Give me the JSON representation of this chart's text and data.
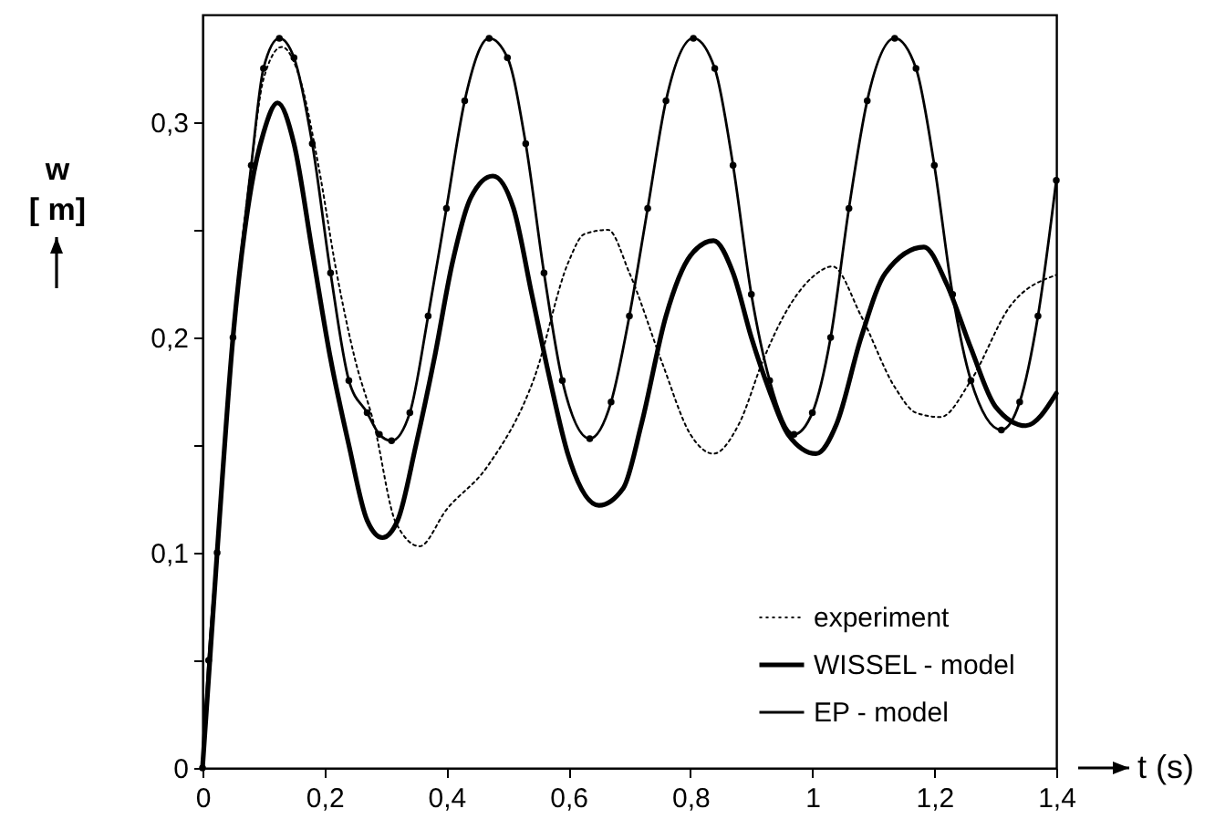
{
  "chart_data": {
    "type": "line",
    "xlabel": "t (s)",
    "ylabel": "w [ m]",
    "xlim": [
      0,
      1.4
    ],
    "ylim": [
      0,
      0.35
    ],
    "xticks": [
      0,
      {
        "value": 0.2,
        "label": "0,2"
      },
      {
        "value": 0.4,
        "label": "0,4"
      },
      {
        "value": 0.6,
        "label": "0,6"
      },
      {
        "value": 0.8,
        "label": "0,8"
      },
      1,
      {
        "value": 1.2,
        "label": "1,2"
      },
      {
        "value": 1.4,
        "label": "1,4"
      }
    ],
    "yticks": [
      0,
      {
        "value": 0.05,
        "label": null
      },
      {
        "value": 0.1,
        "label": "0,1"
      },
      {
        "value": 0.15,
        "label": null
      },
      {
        "value": 0.2,
        "label": "0,2"
      },
      {
        "value": 0.25,
        "label": null
      },
      {
        "value": 0.3,
        "label": "0,3"
      }
    ],
    "grid": false,
    "legend": "bottom right",
    "series": [
      {
        "name": "experiment",
        "color": "#000000",
        "line_style": "dotted",
        "marker": "none",
        "x": [
          0,
          0.024,
          0.05,
          0.08,
          0.1,
          0.13,
          0.16,
          0.19,
          0.22,
          0.25,
          0.281,
          0.317,
          0.356,
          0.4,
          0.467,
          0.545,
          0.6,
          0.626,
          0.665,
          0.7,
          0.754,
          0.8,
          0.838,
          0.88,
          0.92,
          0.955,
          1.0,
          1.033,
          1.08,
          1.135,
          1.17,
          1.21,
          1.26,
          1.323,
          1.4
        ],
        "values": [
          0,
          0.1,
          0.2,
          0.28,
          0.32,
          0.335,
          0.32,
          0.28,
          0.23,
          0.19,
          0.16,
          0.114,
          0.103,
          0.12,
          0.14,
          0.182,
          0.235,
          0.248,
          0.25,
          0.23,
          0.188,
          0.155,
          0.146,
          0.16,
          0.19,
          0.211,
          0.228,
          0.233,
          0.21,
          0.177,
          0.165,
          0.163,
          0.18,
          0.214,
          0.229
        ]
      },
      {
        "name": "WISSEL - model",
        "color": "#000000",
        "line_style": "solid",
        "marker": "none",
        "x": [
          0,
          0.024,
          0.05,
          0.08,
          0.1,
          0.123,
          0.15,
          0.18,
          0.21,
          0.24,
          0.27,
          0.295,
          0.32,
          0.35,
          0.38,
          0.41,
          0.44,
          0.476,
          0.51,
          0.54,
          0.57,
          0.6,
          0.65,
          0.69,
          0.72,
          0.76,
          0.8,
          0.838,
          0.87,
          0.9,
          0.93,
          0.96,
          1.006,
          1.04,
          1.08,
          1.12,
          1.183,
          1.22,
          1.26,
          1.3,
          1.35,
          1.4
        ],
        "values": [
          0,
          0.1,
          0.2,
          0.27,
          0.295,
          0.309,
          0.29,
          0.24,
          0.19,
          0.15,
          0.115,
          0.107,
          0.115,
          0.15,
          0.19,
          0.235,
          0.265,
          0.275,
          0.26,
          0.22,
          0.18,
          0.145,
          0.122,
          0.13,
          0.16,
          0.21,
          0.238,
          0.245,
          0.23,
          0.2,
          0.175,
          0.155,
          0.146,
          0.16,
          0.2,
          0.23,
          0.242,
          0.225,
          0.195,
          0.168,
          0.159,
          0.174
        ]
      },
      {
        "name": "EP - model",
        "color": "#000000",
        "line_style": "solid",
        "marker": "circle",
        "x": [
          0,
          0.01,
          0.024,
          0.05,
          0.08,
          0.1,
          0.126,
          0.15,
          0.18,
          0.21,
          0.24,
          0.27,
          0.29,
          0.31,
          0.34,
          0.37,
          0.4,
          0.43,
          0.47,
          0.5,
          0.53,
          0.56,
          0.59,
          0.635,
          0.67,
          0.7,
          0.73,
          0.76,
          0.805,
          0.84,
          0.87,
          0.9,
          0.93,
          0.97,
          1.0,
          1.03,
          1.06,
          1.09,
          1.135,
          1.17,
          1.2,
          1.23,
          1.26,
          1.31,
          1.34,
          1.37,
          1.4
        ],
        "values": [
          0,
          0.05,
          0.1,
          0.2,
          0.28,
          0.325,
          0.339,
          0.33,
          0.29,
          0.23,
          0.18,
          0.165,
          0.155,
          0.152,
          0.165,
          0.21,
          0.26,
          0.31,
          0.339,
          0.33,
          0.29,
          0.23,
          0.18,
          0.153,
          0.17,
          0.21,
          0.26,
          0.31,
          0.339,
          0.325,
          0.28,
          0.22,
          0.18,
          0.155,
          0.165,
          0.2,
          0.26,
          0.31,
          0.339,
          0.325,
          0.28,
          0.22,
          0.18,
          0.157,
          0.17,
          0.21,
          0.273
        ]
      }
    ]
  }
}
